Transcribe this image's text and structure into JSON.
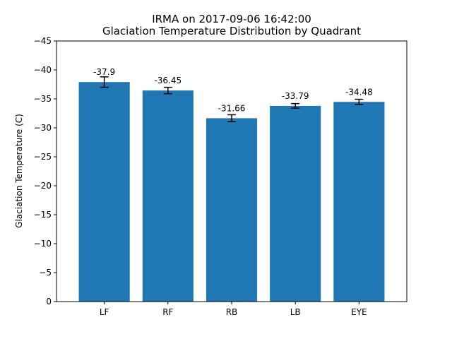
{
  "chart_data": {
    "type": "bar",
    "title_line1": "IRMA on 2017-09-06 16:42:00",
    "title_line2": "Glaciation Temperature Distribution by Quadrant",
    "xlabel": "",
    "ylabel": "Glaciation Temperature (C)",
    "categories": [
      "LF",
      "RF",
      "RB",
      "LB",
      "EYE"
    ],
    "values": [
      -37.9,
      -36.45,
      -31.66,
      -33.79,
      -34.48
    ],
    "value_labels": [
      "-37.9",
      "-36.45",
      "-31.66",
      "-33.79",
      "-34.48"
    ],
    "errors": [
      0.9,
      0.55,
      0.6,
      0.4,
      0.45
    ],
    "ylim": [
      0,
      -45
    ],
    "y_inverted": true,
    "yticks": [
      0,
      -5,
      -10,
      -15,
      -20,
      -25,
      -30,
      -35,
      -40,
      -45
    ],
    "ytick_labels": [
      "0",
      "−5",
      "−10",
      "−15",
      "−20",
      "−25",
      "−30",
      "−35",
      "−40",
      "−45"
    ],
    "bar_color": "#1f77b4",
    "errorbar_color": "#000000",
    "grid": false,
    "legend": "none"
  }
}
